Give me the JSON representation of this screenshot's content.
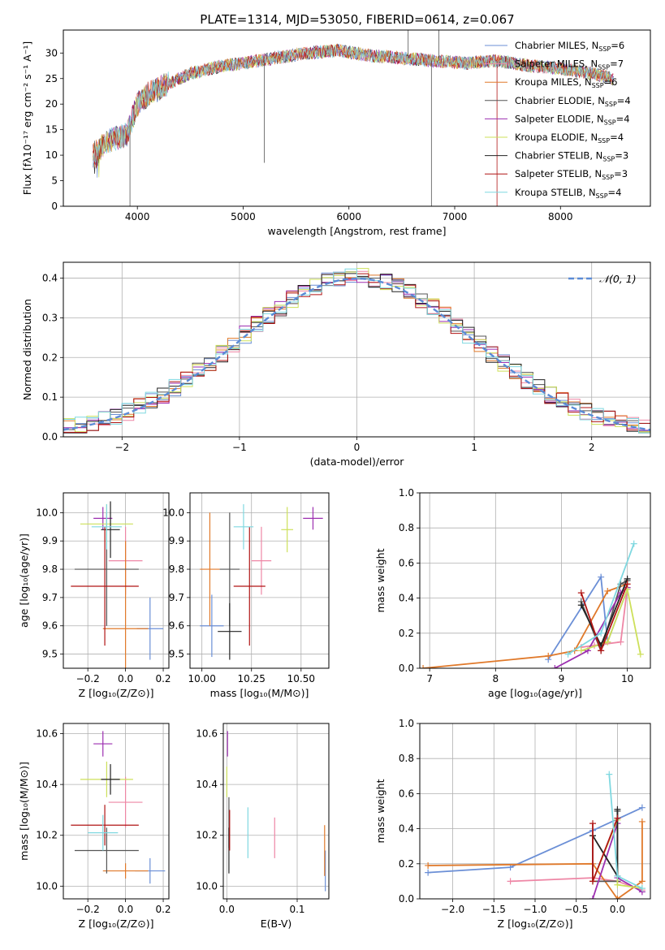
{
  "palette": [
    "#6b8fd6",
    "#ee86a5",
    "#e0792a",
    "#555555",
    "#9c2fb0",
    "#cde05a",
    "#222222",
    "#b01515",
    "#7fd8e0"
  ],
  "chart_data": [
    {
      "id": "spectrum",
      "type": "line",
      "title": "PLATE=1314, MJD=53050, FIBERID=0614, z=0.067",
      "xlabel": "wavelength [Angstrom, rest frame]",
      "ylabel": "Flux [fλ10⁻¹⁷ erg cm⁻² s⁻¹ A⁻¹]",
      "xlim": [
        3300,
        8850
      ],
      "ylim": [
        0,
        34.5
      ],
      "xticks": [
        4000,
        5000,
        6000,
        7000,
        8000
      ],
      "yticks": [
        0,
        5,
        10,
        15,
        20,
        25,
        30
      ],
      "grid": false,
      "legend_position": "top-right",
      "legend": [
        "Chabrier MILES, N_SSP=6",
        "Salpeter MILES, N_SSP=7",
        "Kroupa MILES, N_SSP=6",
        "Chabrier ELODIE, N_SSP=4",
        "Salpeter ELODIE, N_SSP=4",
        "Kroupa ELODIE, N_SSP=4",
        "Chabrier STELIB, N_SSP=3",
        "Salpeter STELIB, N_SSP=3",
        "Kroupa STELIB, N_SSP=4"
      ],
      "x": [
        3580,
        3700,
        3900,
        4000,
        4100,
        4300,
        4500,
        4800,
        5000,
        5300,
        5600,
        5900,
        6200,
        6500,
        6800,
        7100,
        7400,
        7700,
        8000,
        8300,
        8500
      ],
      "y": [
        10,
        12.5,
        14,
        20,
        22,
        24,
        26,
        27.5,
        28,
        29,
        30,
        30.5,
        29.5,
        29,
        28.5,
        28,
        28.5,
        27.5,
        27,
        26,
        25
      ],
      "spikes": [
        {
          "x": 5200,
          "y": 8.5
        },
        {
          "x": 6560,
          "y": 40
        },
        {
          "x": 6780,
          "y": 0
        },
        {
          "x": 6850,
          "y": 40
        },
        {
          "x": 7400,
          "y": 0
        },
        {
          "x": 3930,
          "y": 0
        }
      ]
    },
    {
      "id": "residuals",
      "type": "histogram",
      "xlabel": "(data-model)/error",
      "ylabel": "Normed distribution",
      "xlim": [
        -2.5,
        2.5
      ],
      "ylim": [
        0,
        0.44
      ],
      "xticks": [
        -2,
        -1,
        0,
        1,
        2
      ],
      "yticks": [
        0.0,
        0.1,
        0.2,
        0.3,
        0.4
      ],
      "grid": true,
      "legend_position": "top-right",
      "legend": [
        "𝒩(0, 1)"
      ],
      "bin_width": 0.1
    },
    {
      "id": "age-vs-Z",
      "type": "errorbar",
      "xlabel": "Z [log₁₀(Z/Z⊙)]",
      "ylabel": "age  [log₁₀(age/yr)]",
      "xlim": [
        -0.33,
        0.23
      ],
      "ylim": [
        9.45,
        10.07
      ],
      "xticks": [
        -0.2,
        0.0,
        0.2
      ],
      "yticks": [
        9.5,
        9.6,
        9.7,
        9.8,
        9.9,
        10.0
      ],
      "grid": true,
      "points": [
        {
          "x": 0.13,
          "y": 9.59,
          "xerr": 0.07,
          "yerr": 0.11
        },
        {
          "x": 0.0,
          "y": 9.83,
          "xerr": 0.09,
          "yerr": 0.12
        },
        {
          "x": 0.0,
          "y": 9.59,
          "xerr": 0.12,
          "yerr": 0.31
        },
        {
          "x": -0.1,
          "y": 9.8,
          "xerr": 0.17,
          "yerr": 0.2
        },
        {
          "x": -0.12,
          "y": 9.98,
          "xerr": 0.05,
          "yerr": 0.04
        },
        {
          "x": -0.1,
          "y": 9.96,
          "xerr": 0.14,
          "yerr": 0.07
        },
        {
          "x": -0.08,
          "y": 9.94,
          "xerr": 0.05,
          "yerr": 0.1
        },
        {
          "x": -0.11,
          "y": 9.74,
          "xerr": 0.18,
          "yerr": 0.21
        },
        {
          "x": -0.1,
          "y": 9.95,
          "xerr": 0.08,
          "yerr": 0.08
        }
      ]
    },
    {
      "id": "age-vs-mass",
      "type": "errorbar",
      "xlabel": "mass [log₁₀(M/M⊙)]",
      "ylabel": "",
      "xlim": [
        9.94,
        10.64
      ],
      "ylim": [
        9.45,
        10.07
      ],
      "xticks": [
        10.0,
        10.25,
        10.5
      ],
      "yticks": [
        9.5,
        9.6,
        9.7,
        9.8,
        9.9,
        10.0
      ],
      "grid": true,
      "points": [
        {
          "x": 10.05,
          "y": 9.6,
          "xerr": 0.06,
          "yerr": 0.11
        },
        {
          "x": 10.3,
          "y": 9.83,
          "xerr": 0.05,
          "yerr": 0.12
        },
        {
          "x": 10.04,
          "y": 9.8,
          "xerr": 0.05,
          "yerr": 0.2
        },
        {
          "x": 10.14,
          "y": 9.8,
          "xerr": 0.05,
          "yerr": 0.2
        },
        {
          "x": 10.56,
          "y": 9.98,
          "xerr": 0.05,
          "yerr": 0.04
        },
        {
          "x": 10.43,
          "y": 9.94,
          "xerr": 0.03,
          "yerr": 0.08
        },
        {
          "x": 10.14,
          "y": 9.58,
          "xerr": 0.06,
          "yerr": 0.1
        },
        {
          "x": 10.24,
          "y": 9.74,
          "xerr": 0.08,
          "yerr": 0.21
        },
        {
          "x": 10.21,
          "y": 9.95,
          "xerr": 0.05,
          "yerr": 0.08
        }
      ]
    },
    {
      "id": "weight-vs-age",
      "type": "line",
      "xlabel": "age  [log₁₀(age/yr)]",
      "ylabel": "mass weight",
      "xlim": [
        6.85,
        10.35
      ],
      "ylim": [
        0.0,
        1.0
      ],
      "xticks": [
        7,
        8,
        9,
        10
      ],
      "yticks": [
        0.0,
        0.2,
        0.4,
        0.6,
        0.8,
        1.0
      ],
      "grid": true,
      "series": [
        {
          "x": [
            8.8,
            9.6,
            9.7,
            10.0
          ],
          "y": [
            0.05,
            0.52,
            0.15,
            0.45
          ]
        },
        {
          "x": [
            9.3,
            9.5,
            9.9,
            10.0
          ],
          "y": [
            0.12,
            0.13,
            0.15,
            0.46
          ]
        },
        {
          "x": [
            6.9,
            8.8,
            9.2,
            9.7,
            10.0
          ],
          "y": [
            0.0,
            0.07,
            0.1,
            0.44,
            0.48
          ]
        },
        {
          "x": [
            9.3,
            9.6,
            9.9,
            10.0
          ],
          "y": [
            0.38,
            0.1,
            0.48,
            0.5
          ]
        },
        {
          "x": [
            8.9,
            9.4,
            9.9,
            10.0
          ],
          "y": [
            0.0,
            0.1,
            0.43,
            0.46
          ]
        },
        {
          "x": [
            9.3,
            9.7,
            10.0,
            10.2
          ],
          "y": [
            0.1,
            0.15,
            0.45,
            0.08
          ]
        },
        {
          "x": [
            9.3,
            9.6,
            10.0
          ],
          "y": [
            0.36,
            0.13,
            0.51
          ]
        },
        {
          "x": [
            9.3,
            9.6,
            10.0
          ],
          "y": [
            0.43,
            0.1,
            0.48
          ]
        },
        {
          "x": [
            9.1,
            9.6,
            10.1
          ],
          "y": [
            0.08,
            0.2,
            0.71
          ]
        }
      ]
    },
    {
      "id": "mass-vs-Z",
      "type": "errorbar",
      "xlabel": "Z [log₁₀(Z/Z⊙)]",
      "ylabel": "mass [log₁₀(M/M⊙)]",
      "xlim": [
        -0.33,
        0.23
      ],
      "ylim": [
        9.95,
        10.64
      ],
      "xticks": [
        -0.2,
        0.0,
        0.2
      ],
      "yticks": [
        10.0,
        10.2,
        10.4,
        10.6
      ],
      "grid": true,
      "points": [
        {
          "x": 0.13,
          "y": 10.06,
          "xerr": 0.08,
          "yerr": 0.05
        },
        {
          "x": 0.0,
          "y": 10.33,
          "xerr": 0.09,
          "yerr": 0.1
        },
        {
          "x": 0.0,
          "y": 10.06,
          "xerr": 0.12,
          "yerr": 0.03
        },
        {
          "x": -0.1,
          "y": 10.14,
          "xerr": 0.17,
          "yerr": 0.09
        },
        {
          "x": -0.12,
          "y": 10.56,
          "xerr": 0.05,
          "yerr": 0.05
        },
        {
          "x": -0.1,
          "y": 10.42,
          "xerr": 0.14,
          "yerr": 0.07
        },
        {
          "x": -0.08,
          "y": 10.42,
          "xerr": 0.05,
          "yerr": 0.06
        },
        {
          "x": -0.11,
          "y": 10.24,
          "xerr": 0.18,
          "yerr": 0.08
        },
        {
          "x": -0.12,
          "y": 10.21,
          "xerr": 0.08,
          "yerr": 0.07
        }
      ]
    },
    {
      "id": "mass-vs-ebv",
      "type": "errorbar",
      "xlabel": "E(B-V)",
      "ylabel": "",
      "xlim": [
        -0.005,
        0.145
      ],
      "ylim": [
        9.95,
        10.64
      ],
      "xticks": [
        0.0,
        0.1
      ],
      "yticks": [
        10.0,
        10.2,
        10.4,
        10.6
      ],
      "grid": true,
      "points": [
        {
          "x": 0.14,
          "y": 10.06,
          "xerr": 0,
          "yerr": 0.08
        },
        {
          "x": 0.068,
          "y": 10.19,
          "xerr": 0,
          "yerr": 0.08
        },
        {
          "x": 0.139,
          "y": 10.14,
          "xerr": 0,
          "yerr": 0.1
        },
        {
          "x": 0.003,
          "y": 10.25,
          "xerr": 0,
          "yerr": 0.1
        },
        {
          "x": 0.001,
          "y": 10.56,
          "xerr": 0,
          "yerr": 0.05
        },
        {
          "x": 0.0,
          "y": 10.41,
          "xerr": 0,
          "yerr": 0.06
        },
        {
          "x": 0.003,
          "y": 10.14,
          "xerr": 0,
          "yerr": 0.09
        },
        {
          "x": 0.004,
          "y": 10.22,
          "xerr": 0,
          "yerr": 0.08
        },
        {
          "x": 0.03,
          "y": 10.21,
          "xerr": 0,
          "yerr": 0.1
        }
      ]
    },
    {
      "id": "weight-vs-Z",
      "type": "line",
      "xlabel": "Z [log₁₀(Z/Z⊙)]",
      "ylabel": "mass weight",
      "xlim": [
        -2.4,
        0.4
      ],
      "ylim": [
        0.0,
        1.0
      ],
      "xticks": [
        -2.0,
        -1.5,
        -1.0,
        -0.5,
        0.0
      ],
      "yticks": [
        0.0,
        0.2,
        0.4,
        0.6,
        0.8,
        1.0
      ],
      "grid": true,
      "series": [
        {
          "x": [
            -2.3,
            -1.3,
            -0.3,
            0.3
          ],
          "y": [
            0.15,
            0.18,
            0.39,
            0.52
          ]
        },
        {
          "x": [
            -1.3,
            -0.3,
            0.0,
            0.3
          ],
          "y": [
            0.1,
            0.12,
            0.1,
            0.05
          ]
        },
        {
          "x": [
            -2.3,
            -0.3,
            0.0,
            0.3,
            0.3
          ],
          "y": [
            0.19,
            0.2,
            0.0,
            0.1,
            0.44
          ]
        },
        {
          "x": [
            -0.3,
            -0.3,
            0.0,
            0.0
          ],
          "y": [
            0.36,
            0.1,
            0.1,
            0.5
          ]
        },
        {
          "x": [
            -0.3,
            0.0,
            0.0,
            0.3
          ],
          "y": [
            0.0,
            0.43,
            0.12,
            0.04
          ]
        },
        {
          "x": [
            -0.3,
            0.0,
            0.0,
            0.3
          ],
          "y": [
            0.1,
            0.45,
            0.08,
            0.06
          ]
        },
        {
          "x": [
            -0.3,
            0.0,
            0.0
          ],
          "y": [
            0.36,
            0.13,
            0.51
          ]
        },
        {
          "x": [
            -0.3,
            -0.3,
            0.0
          ],
          "y": [
            0.43,
            0.1,
            0.46
          ]
        },
        {
          "x": [
            -0.1,
            0.0,
            0.3
          ],
          "y": [
            0.71,
            0.13,
            0.06
          ]
        }
      ]
    }
  ]
}
